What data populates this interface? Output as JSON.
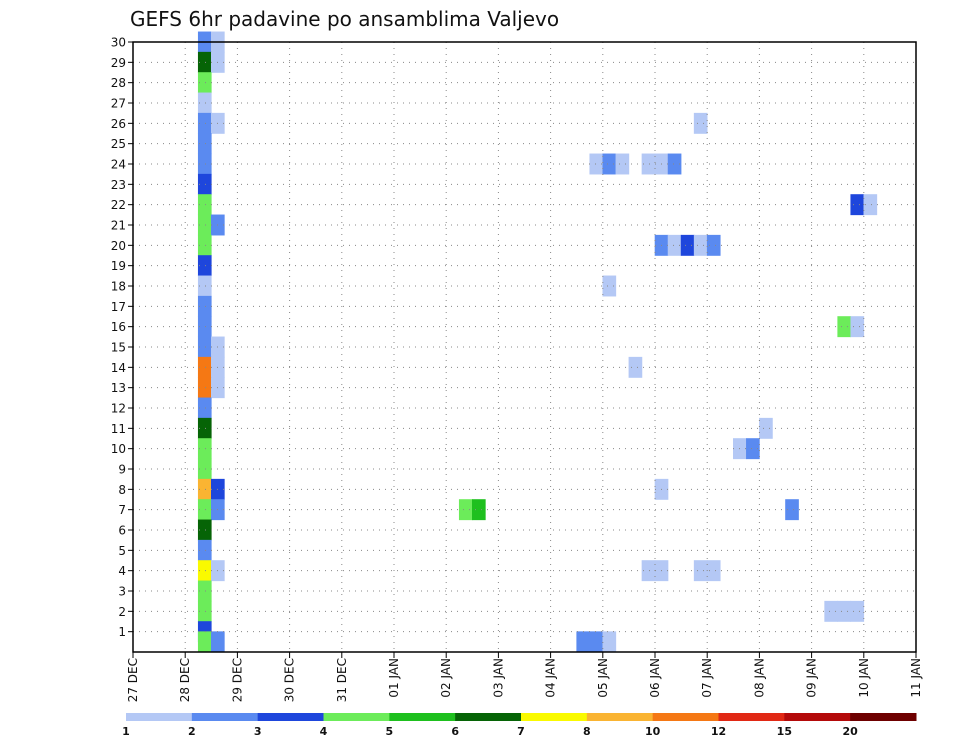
{
  "chart_data": {
    "type": "heatmap",
    "title": "GEFS 6hr padavine po ansamblima Valjevo",
    "xlabel": "",
    "ylabel": "",
    "x_ticks": [
      "27 DEC",
      "28 DEC",
      "29 DEC",
      "30 DEC",
      "31 DEC",
      "01 JAN",
      "02 JAN",
      "03 JAN",
      "04 JAN",
      "05 JAN",
      "06 JAN",
      "07 JAN",
      "08 JAN",
      "09 JAN",
      "10 JAN",
      "11 JAN"
    ],
    "y_ticks": [
      1,
      2,
      3,
      4,
      5,
      6,
      7,
      8,
      9,
      10,
      11,
      12,
      13,
      14,
      15,
      16,
      17,
      18,
      19,
      20,
      21,
      22,
      23,
      24,
      25,
      26,
      27,
      28,
      29,
      30
    ],
    "xlim": [
      0,
      60
    ],
    "ylim": [
      0,
      30
    ],
    "grid": true,
    "legend": {
      "placement": "bottom",
      "levels": [
        "1",
        "2",
        "3",
        "4",
        "5",
        "6",
        "7",
        "8",
        "10",
        "12",
        "15",
        "20"
      ],
      "colors": [
        "#b4c8f5",
        "#5a8af0",
        "#1e46dc",
        "#6cec5a",
        "#1ec01e",
        "#066406",
        "#fafa00",
        "#fab432",
        "#f57814",
        "#e12814",
        "#b40a0a",
        "#6e0000"
      ]
    },
    "cells_note_units": "x index = 6-hour step starting 27 DEC 00Z; y = ensemble member; v = color class index",
    "cells": [
      {
        "x": 5,
        "y": 30,
        "v": 1
      },
      {
        "x": 6,
        "y": 30,
        "v": 0
      },
      {
        "x": 5,
        "y": 29,
        "v": 5
      },
      {
        "x": 6,
        "y": 29,
        "v": 0
      },
      {
        "x": 5,
        "y": 28,
        "v": 3
      },
      {
        "x": 5,
        "y": 27,
        "v": 0
      },
      {
        "x": 5,
        "y": 26,
        "v": 1
      },
      {
        "x": 6,
        "y": 26,
        "v": 0
      },
      {
        "x": 5,
        "y": 25,
        "v": 1
      },
      {
        "x": 5,
        "y": 24,
        "v": 1
      },
      {
        "x": 5,
        "y": 23,
        "v": 2
      },
      {
        "x": 5,
        "y": 22,
        "v": 3
      },
      {
        "x": 5,
        "y": 21,
        "v": 3
      },
      {
        "x": 6,
        "y": 21,
        "v": 1
      },
      {
        "x": 5,
        "y": 20,
        "v": 3
      },
      {
        "x": 5,
        "y": 19,
        "v": 2
      },
      {
        "x": 5,
        "y": 18,
        "v": 0
      },
      {
        "x": 5,
        "y": 17,
        "v": 1
      },
      {
        "x": 5,
        "y": 16,
        "v": 1
      },
      {
        "x": 5,
        "y": 15,
        "v": 1
      },
      {
        "x": 6,
        "y": 15,
        "v": 0
      },
      {
        "x": 5,
        "y": 14,
        "v": 8
      },
      {
        "x": 6,
        "y": 14,
        "v": 0
      },
      {
        "x": 5,
        "y": 13,
        "v": 8
      },
      {
        "x": 6,
        "y": 13,
        "v": 0
      },
      {
        "x": 5,
        "y": 12,
        "v": 1
      },
      {
        "x": 5,
        "y": 11,
        "v": 5
      },
      {
        "x": 5,
        "y": 10,
        "v": 3
      },
      {
        "x": 5,
        "y": 9,
        "v": 3
      },
      {
        "x": 5,
        "y": 8,
        "v": 7
      },
      {
        "x": 6,
        "y": 8,
        "v": 2
      },
      {
        "x": 5,
        "y": 7,
        "v": 3
      },
      {
        "x": 6,
        "y": 7,
        "v": 1
      },
      {
        "x": 5,
        "y": 6,
        "v": 5
      },
      {
        "x": 5,
        "y": 5,
        "v": 1
      },
      {
        "x": 5,
        "y": 4,
        "v": 6
      },
      {
        "x": 6,
        "y": 4,
        "v": 0
      },
      {
        "x": 5,
        "y": 3,
        "v": 3
      },
      {
        "x": 5,
        "y": 2,
        "v": 3
      },
      {
        "x": 5,
        "y": 1,
        "v": 2
      },
      {
        "x": 5,
        "y": 0.5,
        "v": 3
      },
      {
        "x": 6,
        "y": 0.5,
        "v": 1
      },
      {
        "x": 34,
        "y": 0.5,
        "v": 1
      },
      {
        "x": 35,
        "y": 0.5,
        "v": 1
      },
      {
        "x": 36,
        "y": 0.5,
        "v": 0
      },
      {
        "x": 35,
        "y": 24,
        "v": 0
      },
      {
        "x": 36,
        "y": 24,
        "v": 1
      },
      {
        "x": 37,
        "y": 24,
        "v": 0
      },
      {
        "x": 39,
        "y": 24,
        "v": 0
      },
      {
        "x": 40,
        "y": 24,
        "v": 0
      },
      {
        "x": 41,
        "y": 24,
        "v": 1
      },
      {
        "x": 43,
        "y": 26,
        "v": 0
      },
      {
        "x": 55,
        "y": 22,
        "v": 2
      },
      {
        "x": 56,
        "y": 22,
        "v": 0
      },
      {
        "x": 40,
        "y": 20,
        "v": 1
      },
      {
        "x": 41,
        "y": 20,
        "v": 0
      },
      {
        "x": 42,
        "y": 20,
        "v": 2
      },
      {
        "x": 43,
        "y": 20,
        "v": 0
      },
      {
        "x": 44,
        "y": 20,
        "v": 1
      },
      {
        "x": 36,
        "y": 18,
        "v": 0
      },
      {
        "x": 54,
        "y": 16,
        "v": 3
      },
      {
        "x": 55,
        "y": 16,
        "v": 0
      },
      {
        "x": 38,
        "y": 14,
        "v": 0
      },
      {
        "x": 48,
        "y": 11,
        "v": 0
      },
      {
        "x": 46,
        "y": 10,
        "v": 0
      },
      {
        "x": 47,
        "y": 10,
        "v": 1
      },
      {
        "x": 40,
        "y": 8,
        "v": 0
      },
      {
        "x": 25,
        "y": 7,
        "v": 3
      },
      {
        "x": 26,
        "y": 7,
        "v": 4
      },
      {
        "x": 50,
        "y": 7,
        "v": 1
      },
      {
        "x": 39,
        "y": 4,
        "v": 0
      },
      {
        "x": 40,
        "y": 4,
        "v": 0
      },
      {
        "x": 43,
        "y": 4,
        "v": 0
      },
      {
        "x": 44,
        "y": 4,
        "v": 0
      },
      {
        "x": 53,
        "y": 2,
        "v": 0
      },
      {
        "x": 54,
        "y": 2,
        "v": 0
      },
      {
        "x": 55,
        "y": 2,
        "v": 0
      }
    ]
  }
}
